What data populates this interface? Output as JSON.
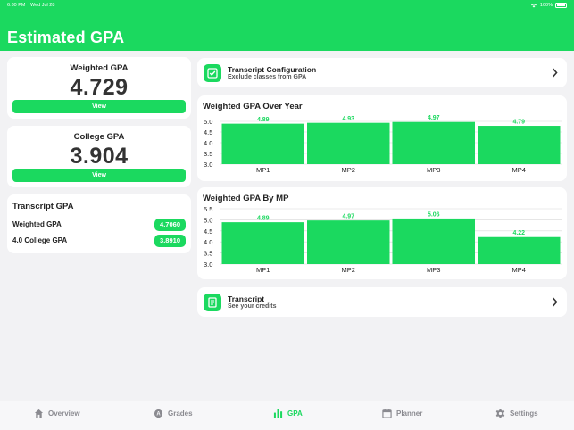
{
  "status": {
    "time": "6:30 PM",
    "date": "Wed Jul 28",
    "battery": "100%"
  },
  "header": {
    "title": "Estimated GPA"
  },
  "weighted_card": {
    "label": "Weighted GPA",
    "value": "4.729",
    "button": "View"
  },
  "college_card": {
    "label": "College GPA",
    "value": "3.904",
    "button": "View"
  },
  "transcript_gpa": {
    "title": "Transcript GPA",
    "rows": [
      {
        "label": "Weighted GPA",
        "value": "4.7060"
      },
      {
        "label": "4.0 College GPA",
        "value": "3.8910"
      }
    ]
  },
  "config_link": {
    "title": "Transcript Configuration",
    "subtitle": "Exclude classes from GPA",
    "icon": "checkbox-icon"
  },
  "transcript_link": {
    "title": "Transcript",
    "subtitle": "See your credits",
    "icon": "document-icon"
  },
  "colors": {
    "accent": "#1bd95f",
    "grid": "#d8d8d8",
    "label": "#222222"
  },
  "chart_data": [
    {
      "type": "bar",
      "title": "Weighted GPA Over Year",
      "categories": [
        "MP1",
        "MP2",
        "MP3",
        "MP4"
      ],
      "values": [
        4.89,
        4.93,
        4.97,
        4.79
      ],
      "data_labels": [
        "4.89",
        "4.93",
        "4.97",
        "4.79"
      ],
      "yticks": [
        "5.0",
        "4.5",
        "4.0",
        "3.5",
        "3.0"
      ],
      "ylim": [
        3.0,
        5.0
      ],
      "grid": true
    },
    {
      "type": "bar",
      "title": "Weighted GPA By MP",
      "categories": [
        "MP1",
        "MP2",
        "MP3",
        "MP4"
      ],
      "values": [
        4.89,
        4.97,
        5.06,
        4.22
      ],
      "data_labels": [
        "4.89",
        "4.97",
        "5.06",
        "4.22"
      ],
      "yticks": [
        "5.5",
        "5.0",
        "4.5",
        "4.0",
        "3.5",
        "3.0"
      ],
      "ylim": [
        3.0,
        5.5
      ],
      "grid": true
    }
  ],
  "tabs": [
    {
      "label": "Overview",
      "icon": "house-icon",
      "active": false
    },
    {
      "label": "Grades",
      "icon": "grades-icon",
      "active": false
    },
    {
      "label": "GPA",
      "icon": "bar-chart-icon",
      "active": true
    },
    {
      "label": "Planner",
      "icon": "calendar-icon",
      "active": false
    },
    {
      "label": "Settings",
      "icon": "gear-icon",
      "active": false
    }
  ]
}
